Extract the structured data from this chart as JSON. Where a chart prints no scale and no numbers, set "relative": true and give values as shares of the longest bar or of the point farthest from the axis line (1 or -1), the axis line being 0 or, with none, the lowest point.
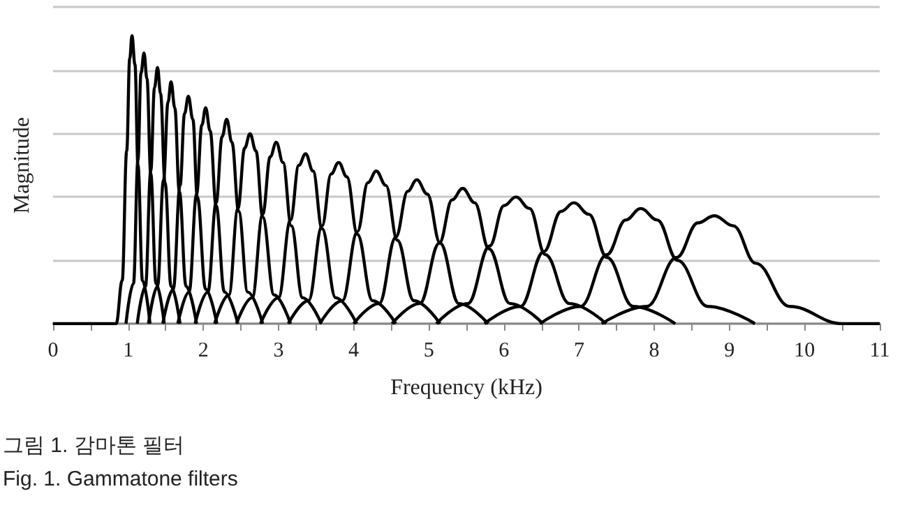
{
  "chart_data": {
    "type": "line",
    "relative": true,
    "xlabel": "Frequency (kHz)",
    "ylabel": "Magnitude",
    "grid": "y",
    "xlim": [
      0,
      11
    ],
    "xticks": [
      0,
      {
        "value": 0.5,
        "label": null
      },
      1,
      {
        "value": 1.5,
        "label": null
      },
      2,
      {
        "value": 2.5,
        "label": null
      },
      3,
      {
        "value": 3.5,
        "label": null
      },
      4,
      {
        "value": 4.5,
        "label": null
      },
      5,
      {
        "value": 5.5,
        "label": null
      },
      6,
      {
        "value": 6.5,
        "label": null
      },
      7,
      {
        "value": 7.5,
        "label": null
      },
      8,
      {
        "value": 8.5,
        "label": null
      },
      9,
      {
        "value": 9.5,
        "label": null
      },
      10,
      {
        "value": 10.5,
        "label": null
      },
      11
    ],
    "annotations": [
      "그림 1. 감마톤 필터",
      "Fig. 1. Gammatone filters"
    ],
    "series": [
      {
        "color": "#000000",
        "x": [
          0,
          0.84,
          0.92,
          0.98,
          1.02,
          1.05,
          1.09,
          1.13,
          1.19,
          1.29
        ],
        "values": [
          0,
          0,
          0.15,
          0.6,
          0.92,
          1,
          0.9,
          0.55,
          0.15,
          0
        ]
      },
      {
        "color": "#000000",
        "x": [
          0.97,
          1.07,
          1.13,
          1.17,
          1.21,
          1.25,
          1.3,
          1.37,
          1.48
        ],
        "values": [
          0,
          0.14,
          0.57,
          0.87,
          0.94,
          0.85,
          0.52,
          0.14,
          0
        ]
      },
      {
        "color": "#000000",
        "x": [
          1.12,
          1.23,
          1.3,
          1.35,
          1.39,
          1.43,
          1.49,
          1.57,
          1.69
        ],
        "values": [
          0,
          0.13,
          0.53,
          0.82,
          0.89,
          0.8,
          0.49,
          0.13,
          0
        ]
      },
      {
        "color": "#000000",
        "x": [
          1.27,
          1.39,
          1.47,
          1.53,
          1.57,
          1.62,
          1.68,
          1.77,
          1.91
        ],
        "values": [
          0,
          0.13,
          0.5,
          0.77,
          0.84,
          0.75,
          0.46,
          0.13,
          0
        ]
      },
      {
        "color": "#000000",
        "x": [
          1.46,
          1.6,
          1.69,
          1.75,
          1.8,
          1.86,
          1.92,
          2.03,
          2.18
        ],
        "values": [
          0,
          0.12,
          0.48,
          0.73,
          0.79,
          0.71,
          0.44,
          0.12,
          0
        ]
      },
      {
        "color": "#000000",
        "x": [
          1.66,
          1.81,
          1.91,
          1.98,
          2.03,
          2.09,
          2.17,
          2.28,
          2.46
        ],
        "values": [
          0,
          0.11,
          0.45,
          0.69,
          0.75,
          0.67,
          0.41,
          0.11,
          0
        ]
      },
      {
        "color": "#000000",
        "x": [
          1.89,
          2.06,
          2.17,
          2.25,
          2.31,
          2.38,
          2.47,
          2.59,
          2.79
        ],
        "values": [
          0,
          0.11,
          0.42,
          0.65,
          0.71,
          0.63,
          0.39,
          0.11,
          0
        ]
      },
      {
        "color": "#000000",
        "x": [
          2.15,
          2.34,
          2.46,
          2.55,
          2.62,
          2.7,
          2.79,
          2.94,
          3.16
        ],
        "values": [
          0,
          0.1,
          0.4,
          0.61,
          0.66,
          0.6,
          0.37,
          0.1,
          0
        ]
      },
      {
        "color": "#000000",
        "x": [
          2.44,
          2.65,
          2.79,
          2.89,
          2.97,
          3.06,
          3.17,
          3.32,
          3.57
        ],
        "values": [
          0,
          0.09,
          0.38,
          0.58,
          0.63,
          0.56,
          0.34,
          0.09,
          0
        ]
      },
      {
        "color": "#000000",
        "x": [
          2.76,
          3.0,
          3.16,
          3.27,
          3.36,
          3.46,
          3.58,
          3.76,
          4.04
        ],
        "values": [
          0,
          0.09,
          0.36,
          0.55,
          0.59,
          0.53,
          0.33,
          0.09,
          0
        ]
      },
      {
        "color": "#000000",
        "x": [
          3.13,
          3.4,
          3.58,
          3.7,
          3.8,
          3.91,
          4.05,
          4.25,
          4.56
        ],
        "values": [
          0,
          0.08,
          0.34,
          0.52,
          0.56,
          0.51,
          0.31,
          0.08,
          0
        ]
      },
      {
        "color": "#000000",
        "x": [
          3.55,
          3.85,
          4.05,
          4.19,
          4.3,
          4.43,
          4.58,
          4.8,
          5.15
        ],
        "values": [
          0,
          0.08,
          0.32,
          0.49,
          0.53,
          0.48,
          0.29,
          0.08,
          0
        ]
      },
      {
        "color": "#000000",
        "x": [
          4.0,
          4.34,
          4.56,
          4.72,
          4.84,
          4.98,
          5.15,
          5.4,
          5.79
        ],
        "values": [
          0,
          0.07,
          0.3,
          0.46,
          0.5,
          0.45,
          0.28,
          0.07,
          0
        ]
      },
      {
        "color": "#000000",
        "x": [
          4.51,
          4.88,
          5.14,
          5.31,
          5.45,
          5.61,
          5.8,
          6.08,
          6.52
        ],
        "values": [
          0,
          0.07,
          0.28,
          0.43,
          0.47,
          0.42,
          0.26,
          0.07,
          0
        ]
      },
      {
        "color": "#000000",
        "x": [
          5.1,
          5.52,
          5.81,
          6.0,
          6.16,
          6.34,
          6.55,
          6.87,
          7.36
        ],
        "values": [
          0,
          0.07,
          0.27,
          0.41,
          0.44,
          0.4,
          0.24,
          0.07,
          0
        ]
      },
      {
        "color": "#000000",
        "x": [
          5.74,
          6.22,
          6.53,
          6.76,
          6.93,
          7.13,
          7.37,
          7.72,
          8.28
        ],
        "values": [
          0,
          0.06,
          0.25,
          0.39,
          0.42,
          0.38,
          0.23,
          0.06,
          0
        ]
      },
      {
        "color": "#000000",
        "x": [
          6.48,
          7.02,
          7.37,
          7.62,
          7.82,
          8.04,
          8.31,
          8.71,
          9.34
        ],
        "values": [
          0,
          0.06,
          0.24,
          0.36,
          0.4,
          0.36,
          0.22,
          0.06,
          0
        ]
      },
      {
        "color": "#000000",
        "x": [
          7.3,
          7.9,
          8.3,
          8.58,
          8.8,
          9.05,
          9.35,
          9.8,
          10.5,
          11
        ],
        "values": [
          0,
          0.06,
          0.23,
          0.35,
          0.375,
          0.34,
          0.21,
          0.06,
          0,
          0
        ]
      }
    ]
  }
}
